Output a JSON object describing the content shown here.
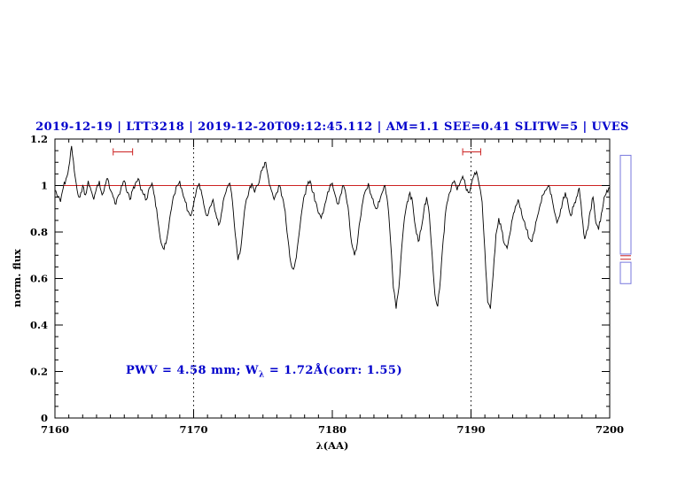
{
  "chart_data": {
    "type": "line",
    "title": "2019-12-19 | LTT3218 | 2019-12-20T09:12:45.112 | AM=1.1 SEE=0.41 SLITW=5 | UVES",
    "title_color": "#0000cc",
    "xlabel": "λ(AA)",
    "ylabel": "norm. flux",
    "xlim": [
      7160,
      7200
    ],
    "ylim": [
      0,
      1.2
    ],
    "x_major_ticks": [
      7160,
      7170,
      7180,
      7190,
      7200
    ],
    "x_tick_labels": [
      "7160",
      "7170",
      "7180",
      "7190",
      "7200"
    ],
    "x_minor_step": 1,
    "y_major_ticks": [
      0,
      0.2,
      0.4,
      0.6,
      0.8,
      1,
      1.2
    ],
    "y_tick_labels": [
      "0",
      "0.2",
      "0.4",
      "0.6",
      "0.8",
      "1",
      "1.2"
    ],
    "y_minor_step": 0.05,
    "grid_dotted_x": [
      7170,
      7190
    ],
    "continuum": {
      "y": 1.0,
      "color": "#cc2222"
    },
    "range_markers": {
      "color": "#cc2222",
      "items": [
        {
          "x1": 7164.2,
          "x2": 7165.6,
          "y": 1.145
        },
        {
          "x1": 7189.4,
          "x2": 7190.7,
          "y": 1.145
        }
      ]
    },
    "annotation": {
      "part1": "PWV = 4.58 mm; W",
      "sub": "λ",
      "part2": " = 1.72Å(corr: 1.55)",
      "color": "#0000cc"
    },
    "render_noise_amp": 0.012,
    "series": [
      {
        "name": "spectrum",
        "color": "#000000",
        "x_start": 7160,
        "x_step": 0.2,
        "flux": [
          0.98,
          0.95,
          0.93,
          0.99,
          1.03,
          1.08,
          1.17,
          1.06,
          0.98,
          0.95,
          1.0,
          0.96,
          1.02,
          0.98,
          0.94,
          0.99,
          1.02,
          0.96,
          1.0,
          1.03,
          0.98,
          0.95,
          0.92,
          0.96,
          1.0,
          1.02,
          0.97,
          0.94,
          0.98,
          1.01,
          1.03,
          0.98,
          0.96,
          0.94,
          0.99,
          1.01,
          0.95,
          0.86,
          0.77,
          0.73,
          0.75,
          0.82,
          0.9,
          0.96,
          1.0,
          1.02,
          0.97,
          0.93,
          0.89,
          0.87,
          0.92,
          0.98,
          1.01,
          0.96,
          0.9,
          0.87,
          0.91,
          0.94,
          0.88,
          0.83,
          0.88,
          0.95,
          0.99,
          1.01,
          0.93,
          0.79,
          0.68,
          0.73,
          0.85,
          0.94,
          0.98,
          1.01,
          0.97,
          1.0,
          1.04,
          1.08,
          1.1,
          1.03,
          0.98,
          0.94,
          0.97,
          1.0,
          0.95,
          0.89,
          0.77,
          0.67,
          0.64,
          0.69,
          0.79,
          0.89,
          0.96,
          1.0,
          1.02,
          0.97,
          0.93,
          0.88,
          0.86,
          0.9,
          0.95,
          0.99,
          1.01,
          0.96,
          0.92,
          0.96,
          1.0,
          0.95,
          0.87,
          0.75,
          0.7,
          0.75,
          0.85,
          0.93,
          0.98,
          1.01,
          0.96,
          0.92,
          0.9,
          0.93,
          0.97,
          1.0,
          0.92,
          0.76,
          0.56,
          0.47,
          0.56,
          0.73,
          0.86,
          0.93,
          0.97,
          0.92,
          0.82,
          0.76,
          0.81,
          0.89,
          0.95,
          0.87,
          0.7,
          0.53,
          0.48,
          0.6,
          0.77,
          0.9,
          0.96,
          1.0,
          1.02,
          0.98,
          1.01,
          1.04,
          1.0,
          0.97,
          1.0,
          1.04,
          1.06,
          1.0,
          0.93,
          0.72,
          0.5,
          0.47,
          0.62,
          0.79,
          0.86,
          0.81,
          0.75,
          0.73,
          0.79,
          0.86,
          0.91,
          0.94,
          0.9,
          0.85,
          0.81,
          0.77,
          0.76,
          0.81,
          0.87,
          0.92,
          0.96,
          0.98,
          1.0,
          0.96,
          0.89,
          0.84,
          0.87,
          0.93,
          0.97,
          0.92,
          0.87,
          0.91,
          0.95,
          0.99,
          0.87,
          0.77,
          0.81,
          0.89,
          0.95,
          0.84,
          0.81,
          0.88,
          0.95,
          0.98,
          0.99
        ]
      }
    ],
    "side_panel": {
      "outline_color": "#7777dd",
      "line_color": "#cc2222",
      "boxes": [
        {
          "top": 1.13,
          "bottom": 0.705
        },
        {
          "top": 0.67,
          "bottom": 0.578
        }
      ],
      "lines": [
        0.698,
        0.683
      ]
    }
  }
}
